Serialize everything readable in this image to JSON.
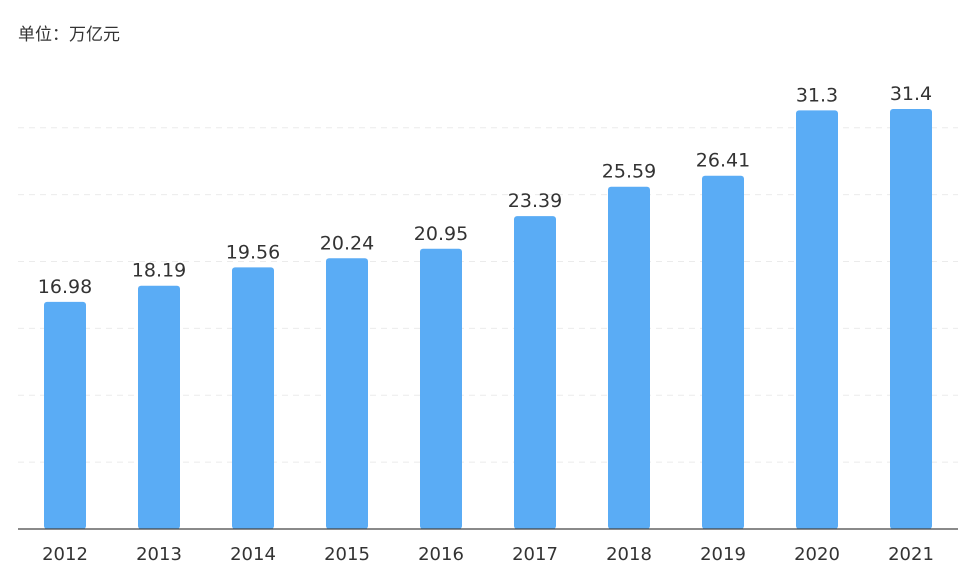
{
  "chart_data": {
    "type": "bar",
    "title": "",
    "unit_label": "单位：万亿元",
    "xlabel": "",
    "ylabel": "",
    "categories": [
      "2012",
      "2013",
      "2014",
      "2015",
      "2016",
      "2017",
      "2018",
      "2019",
      "2020",
      "2021"
    ],
    "values": [
      16.98,
      18.19,
      19.56,
      20.24,
      20.95,
      23.39,
      25.59,
      26.41,
      31.3,
      31.4
    ],
    "value_labels": [
      "16.98",
      "18.19",
      "19.56",
      "20.24",
      "20.95",
      "23.39",
      "25.59",
      "26.41",
      "31.3",
      "31.4"
    ],
    "ylim": [
      0,
      35
    ],
    "grid": true,
    "grid_step": 5,
    "bar_color": "#5aacf5",
    "legend": "none"
  }
}
